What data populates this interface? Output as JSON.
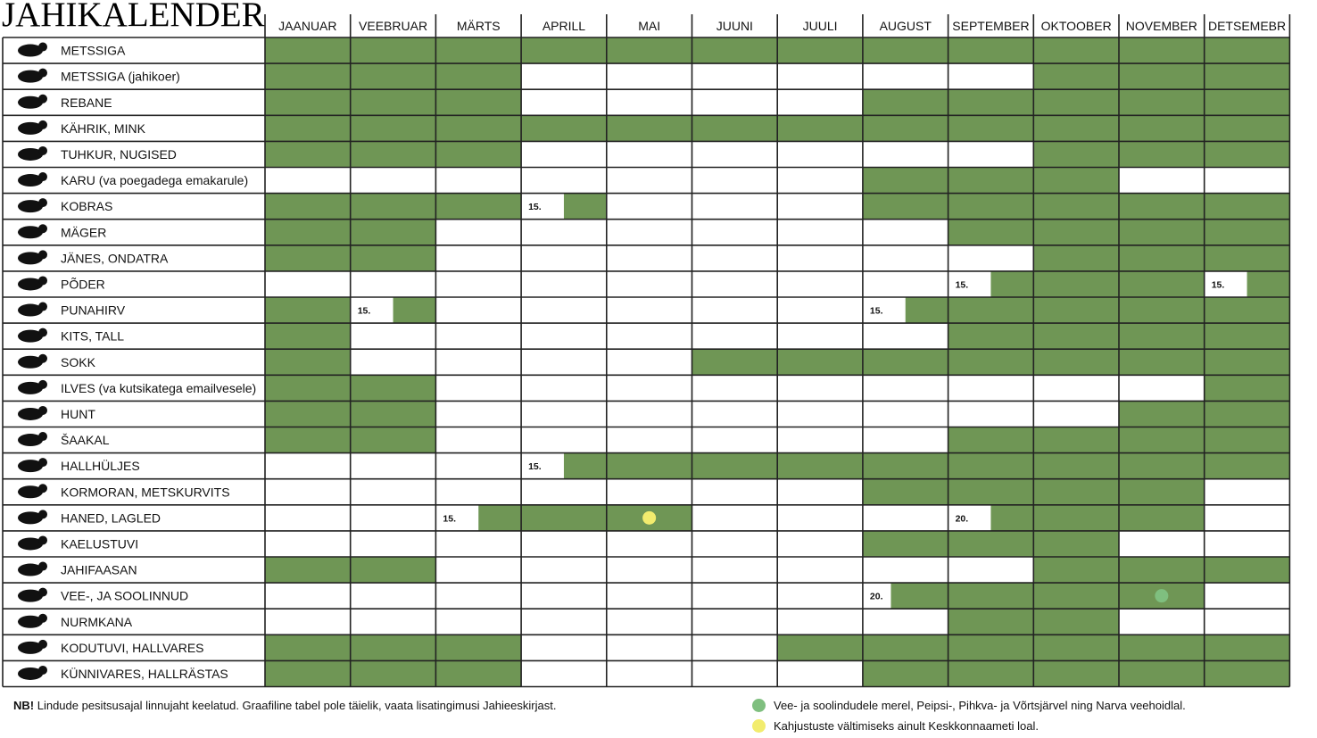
{
  "title": "JAHIKALENDER",
  "colors": {
    "open": "#6f9655",
    "closed": "#ffffff",
    "grid": "#222222",
    "green_dot": "#7fbf7f",
    "yellow_dot": "#f2ec6e"
  },
  "chart_data": {
    "type": "table",
    "months": [
      "JAANUAR",
      "VEEBRUAR",
      "MÄRTS",
      "APRILL",
      "MAI",
      "JUUNI",
      "JUULI",
      "AUGUST",
      "SEPTEMBER",
      "OKTOOBER",
      "NOVEMBER",
      "DETSEMEBR"
    ],
    "rows": [
      {
        "name": "METSSIGA",
        "icon": "boar-icon",
        "open": [
          1,
          1,
          1,
          1,
          1,
          1,
          1,
          1,
          1,
          1,
          1,
          1
        ]
      },
      {
        "name": "METSSIGA (jahikoer)",
        "icon": "boar-icon",
        "open": [
          1,
          1,
          1,
          0,
          0,
          0,
          0,
          0,
          0,
          1,
          1,
          1
        ]
      },
      {
        "name": "REBANE",
        "icon": "fox-icon",
        "open": [
          1,
          1,
          1,
          0,
          0,
          0,
          0,
          1,
          1,
          1,
          1,
          1
        ]
      },
      {
        "name": "KÄHRIK, MINK",
        "icon": "raccoon-dog-icon",
        "open": [
          1,
          1,
          1,
          1,
          1,
          1,
          1,
          1,
          1,
          1,
          1,
          1
        ]
      },
      {
        "name": "TUHKUR, NUGISED",
        "icon": "marten-icon",
        "open": [
          1,
          1,
          1,
          0,
          0,
          0,
          0,
          0,
          0,
          1,
          1,
          1
        ]
      },
      {
        "name": "KARU (va poegadega emakarule)",
        "icon": "bear-icon",
        "open": [
          0,
          0,
          0,
          0,
          0,
          0,
          0,
          1,
          1,
          1,
          0,
          0
        ]
      },
      {
        "name": "KOBRAS",
        "icon": "beaver-icon",
        "open": [
          1,
          1,
          1,
          0.5,
          0,
          0,
          0,
          1,
          1,
          1,
          1,
          1
        ],
        "notes": [
          {
            "month": 4,
            "text": "15."
          }
        ]
      },
      {
        "name": "MÄGER",
        "icon": "badger-icon",
        "open": [
          1,
          1,
          0,
          0,
          0,
          0,
          0,
          0,
          1,
          1,
          1,
          1
        ]
      },
      {
        "name": "JÄNES, ONDATRA",
        "icon": "hare-icon",
        "open": [
          1,
          1,
          0,
          0,
          0,
          0,
          0,
          0,
          0,
          1,
          1,
          1
        ]
      },
      {
        "name": "PÕDER",
        "icon": "moose-icon",
        "open": [
          0,
          0,
          0,
          0,
          0,
          0,
          0,
          0,
          0.5,
          1,
          1,
          0.5
        ],
        "notes": [
          {
            "month": 9,
            "text": "15."
          },
          {
            "month": 12,
            "text": "15."
          }
        ]
      },
      {
        "name": "PUNAHIRV",
        "icon": "red-deer-icon",
        "open": [
          1,
          0.5,
          0,
          0,
          0,
          0,
          0,
          0.5,
          1,
          1,
          1,
          1
        ],
        "notes": [
          {
            "month": 2,
            "text": "15."
          },
          {
            "month": 8,
            "text": "15."
          }
        ]
      },
      {
        "name": "KITS, TALL",
        "icon": "roe-deer-icon",
        "open": [
          1,
          0,
          0,
          0,
          0,
          0,
          0,
          0,
          1,
          1,
          1,
          1
        ]
      },
      {
        "name": "SOKK",
        "icon": "buck-icon",
        "open": [
          1,
          0,
          0,
          0,
          0,
          1,
          1,
          1,
          1,
          1,
          1,
          1
        ]
      },
      {
        "name": "ILVES (va kutsikatega emailvesele)",
        "icon": "lynx-icon",
        "open": [
          1,
          1,
          0,
          0,
          0,
          0,
          0,
          0,
          0,
          0,
          0,
          1
        ]
      },
      {
        "name": "HUNT",
        "icon": "wolf-icon",
        "open": [
          1,
          1,
          0,
          0,
          0,
          0,
          0,
          0,
          0,
          0,
          1,
          1
        ]
      },
      {
        "name": "ŠAAKAL",
        "icon": "jackal-icon",
        "open": [
          1,
          1,
          0,
          0,
          0,
          0,
          0,
          0,
          1,
          1,
          1,
          1
        ]
      },
      {
        "name": "HALLHÜLJES",
        "icon": "seal-icon",
        "open": [
          0,
          0,
          0,
          0.5,
          1,
          1,
          1,
          1,
          1,
          1,
          1,
          1
        ],
        "notes": [
          {
            "month": 4,
            "text": "15."
          }
        ]
      },
      {
        "name": "KORMORAN, METSKURVITS",
        "icon": "cormorant-icon",
        "open": [
          0,
          0,
          0,
          0,
          0,
          0,
          0,
          1,
          1,
          1,
          1,
          0
        ]
      },
      {
        "name": "HANED, LAGLED",
        "icon": "goose-icon",
        "open": [
          0,
          0,
          0.5,
          1,
          1,
          0,
          0,
          0,
          0.5,
          1,
          1,
          0
        ],
        "notes": [
          {
            "month": 3,
            "text": "15."
          },
          {
            "month": 9,
            "text": "20."
          }
        ],
        "dots": [
          {
            "month": 5,
            "color": "yellow"
          }
        ]
      },
      {
        "name": "KAELUSTUVI",
        "icon": "pigeon-icon",
        "open": [
          0,
          0,
          0,
          0,
          0,
          0,
          0,
          1,
          1,
          1,
          0,
          0
        ]
      },
      {
        "name": "JAHIFAASAN",
        "icon": "pheasant-icon",
        "open": [
          1,
          1,
          0,
          0,
          0,
          0,
          0,
          0,
          0,
          1,
          1,
          1
        ]
      },
      {
        "name": "VEE-, JA SOOLINNUD",
        "icon": "duck-icon",
        "open": [
          0,
          0,
          0,
          0,
          0,
          0,
          0,
          0.67,
          1,
          1,
          1,
          0
        ],
        "notes": [
          {
            "month": 8,
            "text": "20."
          }
        ],
        "dots": [
          {
            "month": 11,
            "color": "green"
          }
        ]
      },
      {
        "name": "NURMKANA",
        "icon": "partridge-icon",
        "open": [
          0,
          0,
          0,
          0,
          0,
          0,
          0,
          0,
          1,
          1,
          0,
          0
        ]
      },
      {
        "name": "KODUTUVI, HALLVARES",
        "icon": "crow-icon",
        "open": [
          1,
          1,
          1,
          0,
          0,
          0,
          1,
          1,
          1,
          1,
          1,
          1
        ]
      },
      {
        "name": "KÜNNIVARES, HALLRÄSTAS",
        "icon": "rook-icon",
        "open": [
          1,
          1,
          1,
          0,
          0,
          0,
          0,
          1,
          1,
          1,
          1,
          1
        ]
      }
    ]
  },
  "footer": {
    "nb_bold": "NB!",
    "nb_text": " Lindude pesitsusajal linnujaht keelatud. Graafiline tabel pole täielik, vaata lisatingimusi Jahieeskirjast.",
    "legend": [
      {
        "color": "green",
        "text": "Vee- ja soolindudele merel, Peipsi-, Pihkva- ja Võrtsjärvel ning Narva veehoidlal."
      },
      {
        "color": "yellow",
        "text": "Kahjustuste vältimiseks ainult Keskkonnaameti loal."
      }
    ]
  }
}
